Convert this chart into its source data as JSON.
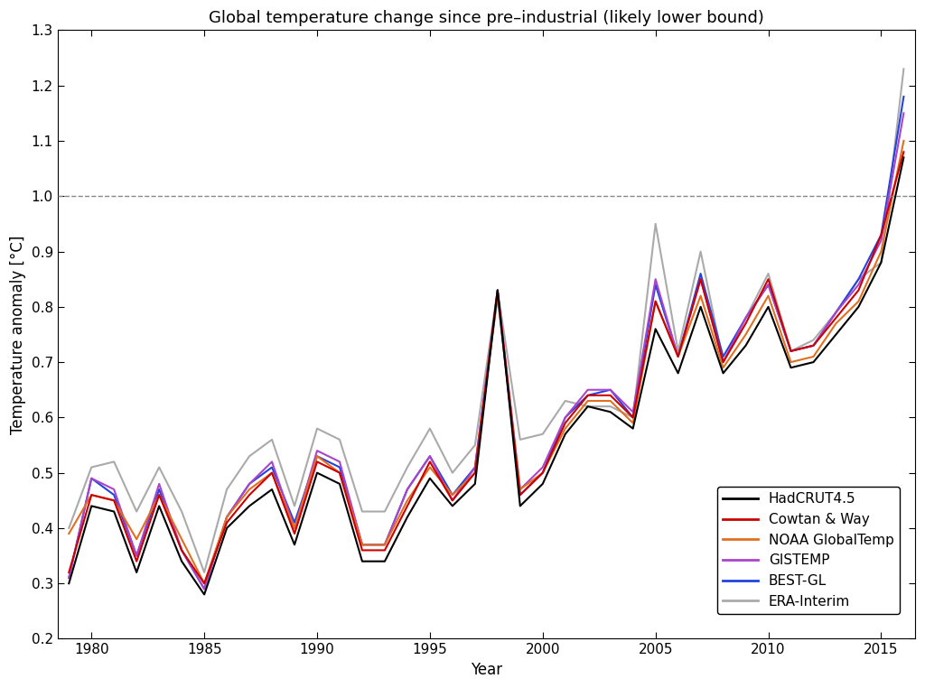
{
  "title": "Global temperature change since pre–industrial (likely lower bound)",
  "xlabel": "Year",
  "ylabel": "Temperature anomaly [°C]",
  "ylim": [
    0.2,
    1.3
  ],
  "xlim": [
    1978.5,
    2016.5
  ],
  "yticks": [
    0.2,
    0.3,
    0.4,
    0.5,
    0.6,
    0.7,
    0.8,
    0.9,
    1.0,
    1.1,
    1.2,
    1.3
  ],
  "xticks": [
    1980,
    1985,
    1990,
    1995,
    2000,
    2005,
    2010,
    2015
  ],
  "dashed_line": 1.0,
  "years": [
    1979,
    1980,
    1981,
    1982,
    1983,
    1984,
    1985,
    1986,
    1987,
    1988,
    1989,
    1990,
    1991,
    1992,
    1993,
    1994,
    1995,
    1996,
    1997,
    1998,
    1999,
    2000,
    2001,
    2002,
    2003,
    2004,
    2005,
    2006,
    2007,
    2008,
    2009,
    2010,
    2011,
    2012,
    2013,
    2014,
    2015,
    2016
  ],
  "datasets": {
    "HadCRUT4.5": {
      "color": "#000000",
      "linewidth": 1.5,
      "zorder": 5,
      "values": [
        0.3,
        0.44,
        0.43,
        0.32,
        0.44,
        0.34,
        0.28,
        0.4,
        0.44,
        0.47,
        0.37,
        0.5,
        0.48,
        0.34,
        0.34,
        0.42,
        0.49,
        0.44,
        0.48,
        0.83,
        0.44,
        0.48,
        0.57,
        0.62,
        0.61,
        0.58,
        0.76,
        0.68,
        0.8,
        0.68,
        0.73,
        0.8,
        0.69,
        0.7,
        0.75,
        0.8,
        0.88,
        1.07
      ]
    },
    "Cowtan & Way": {
      "color": "#cc0000",
      "linewidth": 1.5,
      "zorder": 4,
      "values": [
        0.32,
        0.46,
        0.45,
        0.34,
        0.46,
        0.36,
        0.3,
        0.41,
        0.46,
        0.5,
        0.39,
        0.52,
        0.5,
        0.36,
        0.36,
        0.44,
        0.52,
        0.45,
        0.5,
        0.83,
        0.46,
        0.5,
        0.59,
        0.64,
        0.64,
        0.6,
        0.81,
        0.71,
        0.85,
        0.7,
        0.77,
        0.85,
        0.72,
        0.73,
        0.78,
        0.83,
        0.93,
        1.08
      ]
    },
    "NOAA GlobalTemp": {
      "color": "#e07020",
      "linewidth": 1.5,
      "zorder": 3,
      "values": [
        0.39,
        0.46,
        0.45,
        0.38,
        0.46,
        0.38,
        0.3,
        0.42,
        0.47,
        0.5,
        0.4,
        0.53,
        0.5,
        0.37,
        0.37,
        0.45,
        0.51,
        0.46,
        0.5,
        0.82,
        0.47,
        0.5,
        0.58,
        0.63,
        0.63,
        0.59,
        0.81,
        0.71,
        0.82,
        0.69,
        0.75,
        0.82,
        0.7,
        0.71,
        0.77,
        0.81,
        0.9,
        1.1
      ]
    },
    "GISTEMP": {
      "color": "#aa44cc",
      "linewidth": 1.5,
      "zorder": 2,
      "values": [
        0.31,
        0.49,
        0.47,
        0.35,
        0.48,
        0.36,
        0.29,
        0.42,
        0.48,
        0.52,
        0.4,
        0.54,
        0.52,
        0.37,
        0.37,
        0.47,
        0.53,
        0.45,
        0.51,
        0.83,
        0.47,
        0.51,
        0.6,
        0.65,
        0.65,
        0.61,
        0.85,
        0.71,
        0.85,
        0.7,
        0.78,
        0.84,
        0.72,
        0.73,
        0.79,
        0.84,
        0.92,
        1.15
      ]
    },
    "BEST-GL": {
      "color": "#2244dd",
      "linewidth": 1.5,
      "zorder": 1,
      "values": [
        0.31,
        0.49,
        0.46,
        0.35,
        0.47,
        0.36,
        0.29,
        0.42,
        0.48,
        0.51,
        0.41,
        0.53,
        0.51,
        0.37,
        0.37,
        0.47,
        0.53,
        0.46,
        0.51,
        0.82,
        0.46,
        0.5,
        0.6,
        0.64,
        0.65,
        0.6,
        0.84,
        0.71,
        0.86,
        0.71,
        0.78,
        0.84,
        0.72,
        0.73,
        0.79,
        0.85,
        0.93,
        1.18
      ]
    },
    "ERA-Interim": {
      "color": "#aaaaaa",
      "linewidth": 1.5,
      "zorder": 0,
      "values": [
        0.4,
        0.51,
        0.52,
        0.43,
        0.51,
        0.43,
        0.32,
        0.47,
        0.53,
        0.56,
        0.44,
        0.58,
        0.56,
        0.43,
        0.43,
        0.51,
        0.58,
        0.5,
        0.55,
        0.83,
        0.56,
        0.57,
        0.63,
        0.62,
        0.62,
        0.6,
        0.95,
        0.72,
        0.9,
        0.7,
        0.78,
        0.86,
        0.72,
        0.74,
        0.79,
        0.85,
        0.88,
        1.23
      ]
    }
  },
  "legend_order": [
    "HadCRUT4.5",
    "Cowtan & Way",
    "NOAA GlobalTemp",
    "GISTEMP",
    "BEST-GL",
    "ERA-Interim"
  ],
  "background_color": "#ffffff",
  "title_fontsize": 13,
  "label_fontsize": 12,
  "tick_fontsize": 11,
  "legend_fontsize": 11
}
